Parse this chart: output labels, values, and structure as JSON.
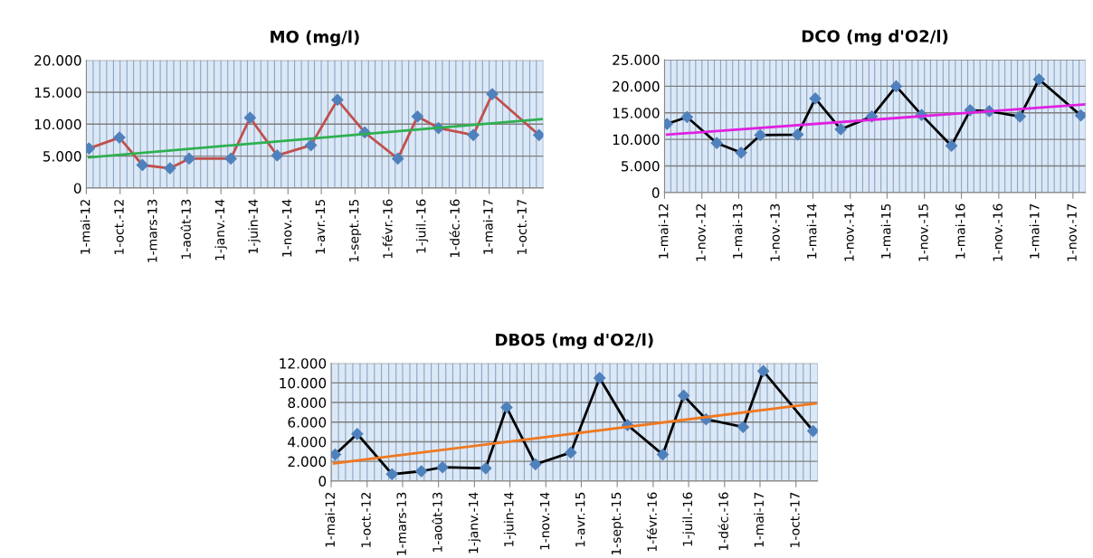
{
  "chart_data": [
    {
      "type": "line",
      "title": "MO (mg/l)",
      "grid": true,
      "marker": "diamond",
      "xlim": [
        "2012-05-01",
        "2018-01-01"
      ],
      "xticks": [
        {
          "value": "2012-05-01",
          "label": "1-mai-12"
        },
        {
          "value": "2012-10-01",
          "label": "1-oct.-12"
        },
        {
          "value": "2013-03-01",
          "label": "1-mars-13"
        },
        {
          "value": "2013-08-01",
          "label": "1-août-13"
        },
        {
          "value": "2014-01-01",
          "label": "1-janv.-14"
        },
        {
          "value": "2014-06-01",
          "label": "1-juin-14"
        },
        {
          "value": "2014-11-01",
          "label": "1-nov.-14"
        },
        {
          "value": "2015-04-01",
          "label": "1-avr.-15"
        },
        {
          "value": "2015-09-01",
          "label": "1-sept.-15"
        },
        {
          "value": "2016-02-01",
          "label": "1-févr.-16"
        },
        {
          "value": "2016-07-01",
          "label": "1-juil.-16"
        },
        {
          "value": "2016-12-01",
          "label": "1-déc.-16"
        },
        {
          "value": "2017-05-01",
          "label": "1-mai-17"
        },
        {
          "value": "2017-10-01",
          "label": "1-oct.-17"
        }
      ],
      "ylim": [
        0,
        20000
      ],
      "yticks": [
        0,
        {
          "value": 5000,
          "label": "5.000"
        },
        {
          "value": 10000,
          "label": "10.000"
        },
        {
          "value": 15000,
          "label": "15.000"
        },
        {
          "value": 20000,
          "label": "20.000"
        }
      ],
      "series": [
        {
          "color": "#c0504d",
          "x": [
            "2012-05-13",
            "2012-09-28",
            "2013-01-10",
            "2013-05-15",
            "2013-08-10",
            "2014-02-15",
            "2014-05-13",
            "2014-09-13",
            "2015-02-13",
            "2015-06-13",
            "2015-10-15",
            "2016-03-13",
            "2016-06-10",
            "2016-09-13",
            "2017-02-18",
            "2017-05-15",
            "2017-12-13"
          ],
          "values": [
            6200,
            7900,
            3600,
            3100,
            4600,
            4600,
            11000,
            5100,
            6700,
            13800,
            8700,
            4600,
            11200,
            9400,
            8300,
            14700,
            8300
          ]
        },
        {
          "type": "line",
          "color": "#2eb04f",
          "marker": "none",
          "x": [
            "2012-05-13",
            "2017-12-25"
          ],
          "values": [
            4800,
            10800
          ]
        }
      ]
    },
    {
      "type": "line",
      "title": "DCO (mg d'O2/l)",
      "grid": true,
      "marker": "diamond",
      "xlim": [
        "2012-05-01",
        "2018-01-01"
      ],
      "xticks": [
        {
          "value": "2012-05-01",
          "label": "1-mai-12"
        },
        {
          "value": "2012-11-01",
          "label": "1-nov.-12"
        },
        {
          "value": "2013-05-01",
          "label": "1-mai-13"
        },
        {
          "value": "2013-11-01",
          "label": "1-nov.-13"
        },
        {
          "value": "2014-05-01",
          "label": "1-mai-14"
        },
        {
          "value": "2014-11-01",
          "label": "1-nov.-14"
        },
        {
          "value": "2015-05-01",
          "label": "1-mai-15"
        },
        {
          "value": "2015-11-01",
          "label": "1-nov.-15"
        },
        {
          "value": "2016-05-01",
          "label": "1-mai-16"
        },
        {
          "value": "2016-11-01",
          "label": "1-nov.-16"
        },
        {
          "value": "2017-05-01",
          "label": "1-mai-17"
        },
        {
          "value": "2017-11-01",
          "label": "1-nov.-17"
        }
      ],
      "ylim": [
        0,
        25000
      ],
      "yticks": [
        0,
        {
          "value": 5000,
          "label": "5.000"
        },
        {
          "value": 10000,
          "label": "10.000"
        },
        {
          "value": 15000,
          "label": "15.000"
        },
        {
          "value": 20000,
          "label": "20.000"
        },
        {
          "value": 25000,
          "label": "25.000"
        }
      ],
      "series": [
        {
          "color": "#000000",
          "x": [
            "2012-05-13",
            "2012-08-20",
            "2013-01-13",
            "2013-05-13",
            "2013-08-15",
            "2014-02-15",
            "2014-05-13",
            "2014-09-15",
            "2015-02-15",
            "2015-06-15",
            "2015-10-18",
            "2016-03-13",
            "2016-06-13",
            "2016-09-15",
            "2017-02-13",
            "2017-05-18",
            "2017-12-10"
          ],
          "values": [
            12900,
            14200,
            9300,
            7500,
            10800,
            10900,
            17700,
            11900,
            14300,
            20000,
            14600,
            8800,
            15500,
            15300,
            14300,
            21300,
            14500
          ]
        },
        {
          "type": "line",
          "color": "#e020e0",
          "marker": "none",
          "x": [
            "2012-05-13",
            "2018-01-01"
          ],
          "values": [
            10900,
            16600
          ]
        }
      ]
    },
    {
      "type": "line",
      "title": "DBO5 (mg d'O2/l)",
      "grid": true,
      "marker": "diamond",
      "xlim": [
        "2012-05-01",
        "2018-01-01"
      ],
      "xticks": [
        {
          "value": "2012-05-01",
          "label": "1-mai-12"
        },
        {
          "value": "2012-10-01",
          "label": "1-oct.-12"
        },
        {
          "value": "2013-03-01",
          "label": "1-mars-13"
        },
        {
          "value": "2013-08-01",
          "label": "1-août-13"
        },
        {
          "value": "2014-01-01",
          "label": "1-janv.-14"
        },
        {
          "value": "2014-06-01",
          "label": "1-juin-14"
        },
        {
          "value": "2014-11-01",
          "label": "1-nov.-14"
        },
        {
          "value": "2015-04-01",
          "label": "1-avr.-15"
        },
        {
          "value": "2015-09-01",
          "label": "1-sept.-15"
        },
        {
          "value": "2016-02-01",
          "label": "1-févr.-16"
        },
        {
          "value": "2016-07-01",
          "label": "1-juil.-16"
        },
        {
          "value": "2016-12-01",
          "label": "1-déc.-16"
        },
        {
          "value": "2017-05-01",
          "label": "1-mai-17"
        },
        {
          "value": "2017-10-01",
          "label": "1-oct.-17"
        }
      ],
      "ylim": [
        0,
        12000
      ],
      "yticks": [
        0,
        {
          "value": 2000,
          "label": "2.000"
        },
        {
          "value": 4000,
          "label": "4.000"
        },
        {
          "value": 6000,
          "label": "6.000"
        },
        {
          "value": 8000,
          "label": "8.000"
        },
        {
          "value": 10000,
          "label": "10.000"
        },
        {
          "value": 12000,
          "label": "12.000"
        }
      ],
      "series": [
        {
          "color": "#000000",
          "x": [
            "2012-05-18",
            "2012-08-20",
            "2013-01-15",
            "2013-05-20",
            "2013-08-18",
            "2014-02-18",
            "2014-05-18",
            "2014-09-18",
            "2015-02-15",
            "2015-06-18",
            "2015-10-15",
            "2016-03-13",
            "2016-06-10",
            "2016-09-13",
            "2017-02-18",
            "2017-05-15",
            "2017-12-13"
          ],
          "values": [
            2700,
            4800,
            700,
            1000,
            1400,
            1300,
            7500,
            1700,
            2900,
            10500,
            5700,
            2700,
            8700,
            6300,
            5500,
            11200,
            5100
          ]
        },
        {
          "type": "line",
          "color": "#f07820",
          "marker": "none",
          "x": [
            "2012-05-13",
            "2017-12-25"
          ],
          "values": [
            1800,
            7900
          ]
        }
      ]
    }
  ]
}
